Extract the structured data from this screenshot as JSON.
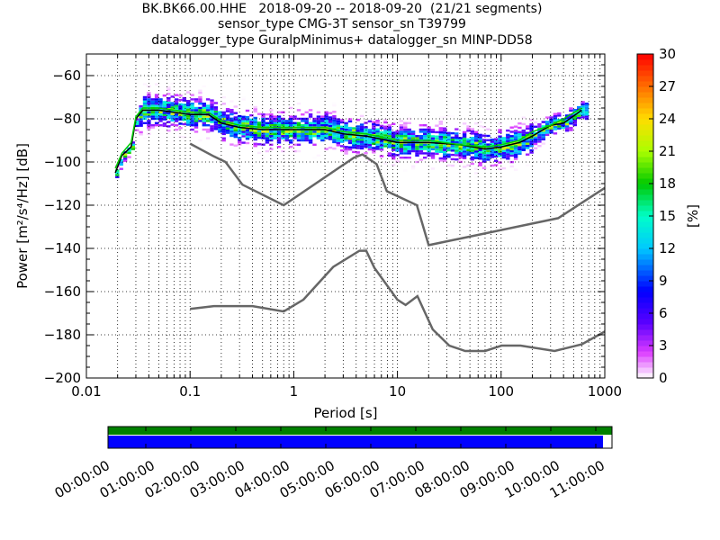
{
  "title": {
    "line1": "BK.BK66.00.HHE   2018-09-20 -- 2018-09-20  (21/21 segments)",
    "line2": "sensor_type CMG-3T sensor_sn T39799",
    "line3": "datalogger_type GuralpMinimus+ datalogger_sn MINP-DD58"
  },
  "chart_data": [
    {
      "type": "heatmap",
      "xlabel": "Period [s]",
      "ylabel": "Power [m²/s⁴/Hz] [dB]",
      "xscale": "log",
      "xlim": [
        0.01,
        1000
      ],
      "ylim": [
        -200,
        -50
      ],
      "xticks": [
        {
          "value": 0.01,
          "label": "0.01"
        },
        {
          "value": 0.1,
          "label": "0.1"
        },
        {
          "value": 1,
          "label": "1"
        },
        {
          "value": 10,
          "label": "10"
        },
        {
          "value": 100,
          "label": "100"
        },
        {
          "value": 1000,
          "label": "1000"
        }
      ],
      "yticks": [
        -60,
        -80,
        -100,
        -120,
        -140,
        -160,
        -180,
        -200
      ],
      "grid": true,
      "colorbar": {
        "label": "[%]",
        "min": 0,
        "max": 30,
        "ticks": [
          0,
          3,
          6,
          9,
          12,
          15,
          18,
          21,
          24,
          27,
          30
        ]
      },
      "series": [
        {
          "role": "new-high-noise-model",
          "color": "#666666",
          "points": [
            [
              0.1,
              -91.5
            ],
            [
              0.17,
              -97.4
            ],
            [
              0.22,
              -100.0
            ],
            [
              0.32,
              -110.5
            ],
            [
              0.8,
              -120.0
            ],
            [
              3.8,
              -98.0
            ],
            [
              4.6,
              -96.5
            ],
            [
              6.3,
              -101.0
            ],
            [
              7.9,
              -113.5
            ],
            [
              15.4,
              -120.0
            ],
            [
              20.0,
              -138.5
            ],
            [
              354.8,
              -126.0
            ],
            [
              1000,
              -112.0
            ]
          ]
        },
        {
          "role": "new-low-noise-model",
          "color": "#666666",
          "points": [
            [
              0.1,
              -168.0
            ],
            [
              0.17,
              -166.7
            ],
            [
              0.4,
              -166.7
            ],
            [
              0.8,
              -169.2
            ],
            [
              1.24,
              -163.7
            ],
            [
              2.4,
              -148.6
            ],
            [
              4.3,
              -141.1
            ],
            [
              5.0,
              -141.1
            ],
            [
              6.0,
              -149.0
            ],
            [
              10.0,
              -163.8
            ],
            [
              12.0,
              -166.2
            ],
            [
              15.6,
              -162.1
            ],
            [
              21.9,
              -177.5
            ],
            [
              31.6,
              -185.0
            ],
            [
              45.0,
              -187.5
            ],
            [
              70.0,
              -187.5
            ],
            [
              101.0,
              -185.0
            ],
            [
              154.0,
              -185.0
            ],
            [
              328.0,
              -187.5
            ],
            [
              600.0,
              -184.4
            ],
            [
              1000,
              -178.5
            ]
          ]
        },
        {
          "role": "mode-psd",
          "color": "#000000",
          "points": [
            [
              0.019,
              -105
            ],
            [
              0.022,
              -97
            ],
            [
              0.027,
              -93
            ],
            [
              0.03,
              -80
            ],
            [
              0.035,
              -76
            ],
            [
              0.05,
              -76
            ],
            [
              0.07,
              -77
            ],
            [
              0.1,
              -78
            ],
            [
              0.15,
              -78
            ],
            [
              0.2,
              -82
            ],
            [
              0.3,
              -84
            ],
            [
              0.5,
              -85
            ],
            [
              1,
              -85
            ],
            [
              2,
              -85
            ],
            [
              3,
              -87
            ],
            [
              5,
              -88
            ],
            [
              10,
              -91
            ],
            [
              20,
              -91
            ],
            [
              40,
              -92
            ],
            [
              70,
              -94
            ],
            [
              100,
              -93
            ],
            [
              150,
              -91
            ],
            [
              200,
              -88
            ],
            [
              300,
              -83
            ],
            [
              400,
              -82
            ],
            [
              600,
              -76
            ]
          ]
        },
        {
          "role": "median-psd",
          "color": "#00cc00",
          "points": [
            [
              0.019,
              -103
            ],
            [
              0.022,
              -96
            ],
            [
              0.027,
              -91
            ],
            [
              0.03,
              -79
            ],
            [
              0.035,
              -75
            ],
            [
              0.05,
              -75
            ],
            [
              0.07,
              -76
            ],
            [
              0.1,
              -77
            ],
            [
              0.15,
              -77
            ],
            [
              0.2,
              -81
            ],
            [
              0.3,
              -83
            ],
            [
              0.5,
              -84
            ],
            [
              1,
              -84
            ],
            [
              2,
              -84
            ],
            [
              3,
              -86
            ],
            [
              5,
              -87
            ],
            [
              10,
              -90
            ],
            [
              20,
              -90
            ],
            [
              40,
              -92
            ],
            [
              70,
              -93
            ],
            [
              100,
              -92
            ],
            [
              150,
              -90
            ],
            [
              200,
              -86
            ],
            [
              300,
              -83
            ],
            [
              400,
              -80
            ],
            [
              600,
              -75
            ]
          ]
        }
      ]
    },
    {
      "type": "bar",
      "role": "data-coverage",
      "xticks": [
        "00:00:00",
        "01:00:00",
        "02:00:00",
        "03:00:00",
        "04:00:00",
        "05:00:00",
        "06:00:00",
        "07:00:00",
        "08:00:00",
        "09:00:00",
        "10:00:00",
        "11:00:00"
      ],
      "tick_positions_hours": [
        -0.16,
        0.84,
        1.84,
        2.84,
        3.84,
        4.84,
        5.84,
        6.84,
        7.84,
        8.84,
        9.84,
        10.84
      ],
      "xlim_hours": [
        0,
        11.2
      ],
      "series": [
        {
          "role": "processed-psd-windows",
          "color": "#008000",
          "start_hours": 0,
          "end_hours": 11.2
        },
        {
          "role": "data-available",
          "color": "#0000ff",
          "start_hours": 0,
          "end_hours": 11.0
        }
      ]
    }
  ]
}
